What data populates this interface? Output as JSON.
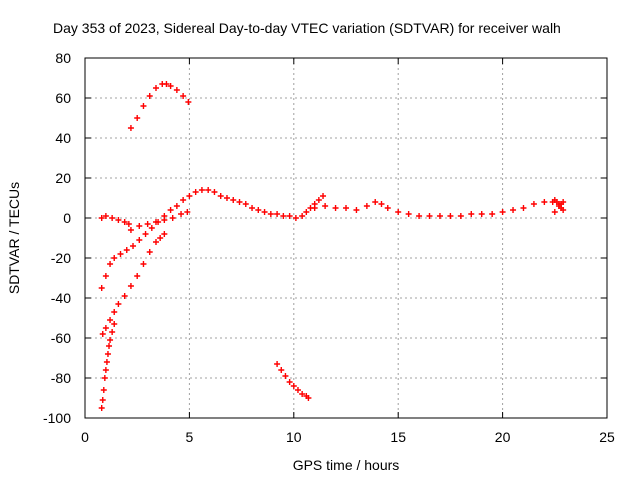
{
  "chart_data": {
    "type": "scatter",
    "title": "Day 353 of 2023, Sidereal Day-to-day VTEC variation (SDTVAR) for receiver walh",
    "xlabel": "GPS time / hours",
    "ylabel": "SDTVAR / TECUs",
    "xlim": [
      0,
      25
    ],
    "ylim": [
      -100,
      80
    ],
    "xticks": [
      0,
      5,
      10,
      15,
      20,
      25
    ],
    "yticks": [
      -100,
      -80,
      -60,
      -40,
      -20,
      0,
      20,
      40,
      60,
      80
    ],
    "xtick_labels": [
      "0",
      "5",
      "10",
      "15",
      "20",
      "25"
    ],
    "ytick_labels": [
      "-100",
      "-80",
      "-60",
      "-40",
      "-20",
      "0",
      "20",
      "40",
      "60",
      "80"
    ],
    "grid": true,
    "marker": "plus",
    "color": "#ff0000",
    "series": [
      {
        "name": "arc-high",
        "x": [
          2.2,
          2.5,
          2.8,
          3.1,
          3.4,
          3.7,
          3.9,
          4.1,
          4.4,
          4.7,
          4.95
        ],
        "y": [
          45,
          50,
          56,
          61,
          65,
          67,
          67,
          66,
          64,
          61,
          58
        ]
      },
      {
        "name": "arc-main-rise",
        "x": [
          0.8,
          1.0,
          1.2,
          1.4,
          1.7,
          2.0,
          2.3,
          2.6,
          2.9,
          3.2,
          3.5,
          3.8,
          4.1,
          4.4,
          4.7,
          5.0,
          5.3,
          5.6,
          5.9,
          6.2,
          6.5,
          6.8,
          7.1,
          7.4,
          7.7,
          8.0,
          8.3,
          8.6,
          8.9,
          9.2,
          9.5,
          9.8,
          10.1
        ],
        "y": [
          -35,
          -29,
          -23,
          -20,
          -18,
          -16,
          -14,
          -11,
          -8,
          -5,
          -2,
          1,
          4,
          6,
          9,
          11,
          13,
          14,
          14,
          13,
          11,
          10,
          9,
          8,
          7,
          5,
          4,
          3,
          2,
          2,
          1,
          1,
          0
        ]
      },
      {
        "name": "arc-near-zero",
        "x": [
          0.8,
          1.0,
          1.3,
          1.6,
          1.9,
          2.1,
          2.2
        ],
        "y": [
          0,
          1,
          0,
          -1,
          -2,
          -3,
          -6
        ]
      },
      {
        "name": "arc-mid",
        "x": [
          2.6,
          3.0,
          3.4,
          3.8,
          4.2,
          4.6,
          4.9
        ],
        "y": [
          -4,
          -3,
          -2,
          -1,
          0,
          2,
          3
        ]
      },
      {
        "name": "arc-lower-rise",
        "x": [
          0.85,
          1.0,
          1.2,
          1.4,
          1.6,
          1.9,
          2.2,
          2.5,
          2.8,
          3.1,
          3.4,
          3.6,
          3.8
        ],
        "y": [
          -58,
          -55,
          -51,
          -47,
          -43,
          -39,
          -34,
          -29,
          -23,
          -17,
          -12,
          -10,
          -8
        ]
      },
      {
        "name": "arc-deep",
        "x": [
          0.8,
          0.85,
          0.9,
          0.95,
          1.0,
          1.05,
          1.1,
          1.15,
          1.2,
          1.3,
          1.4
        ],
        "y": [
          -95,
          -91,
          -86,
          -80,
          -76,
          -72,
          -68,
          -64,
          -61,
          -57,
          -53
        ]
      },
      {
        "name": "arc-late-fall",
        "x": [
          9.2,
          9.4,
          9.6,
          9.8,
          10.0,
          10.2,
          10.4,
          10.6,
          10.7
        ],
        "y": [
          -73,
          -76,
          -79,
          -82,
          -84,
          -86,
          -88,
          -89,
          -90
        ]
      },
      {
        "name": "arc-jump",
        "x": [
          10.4,
          10.6,
          10.8,
          11.0,
          11.2,
          11.4
        ],
        "y": [
          1,
          3,
          5,
          7,
          9,
          11
        ]
      },
      {
        "name": "arc-tail",
        "x": [
          11.0,
          11.5,
          12.0,
          12.5,
          13.0,
          13.5,
          13.9,
          14.2,
          14.5,
          15.0,
          15.5,
          16.0,
          16.5,
          17.0,
          17.5,
          18.0,
          18.5,
          19.0,
          19.5,
          20.0,
          20.5,
          21.0,
          21.5,
          22.0,
          22.4,
          22.8
        ],
        "y": [
          5,
          6,
          5,
          5,
          4,
          6,
          8,
          7,
          5,
          3,
          2,
          1,
          1,
          1,
          1,
          1,
          2,
          2,
          2,
          3,
          4,
          5,
          7,
          8,
          8,
          7
        ]
      },
      {
        "name": "arc-end-cluster",
        "x": [
          22.5,
          22.6,
          22.7,
          22.8,
          22.9,
          22.5,
          22.7,
          22.9
        ],
        "y": [
          9,
          8,
          6,
          5,
          4,
          3,
          7,
          8
        ]
      }
    ]
  }
}
